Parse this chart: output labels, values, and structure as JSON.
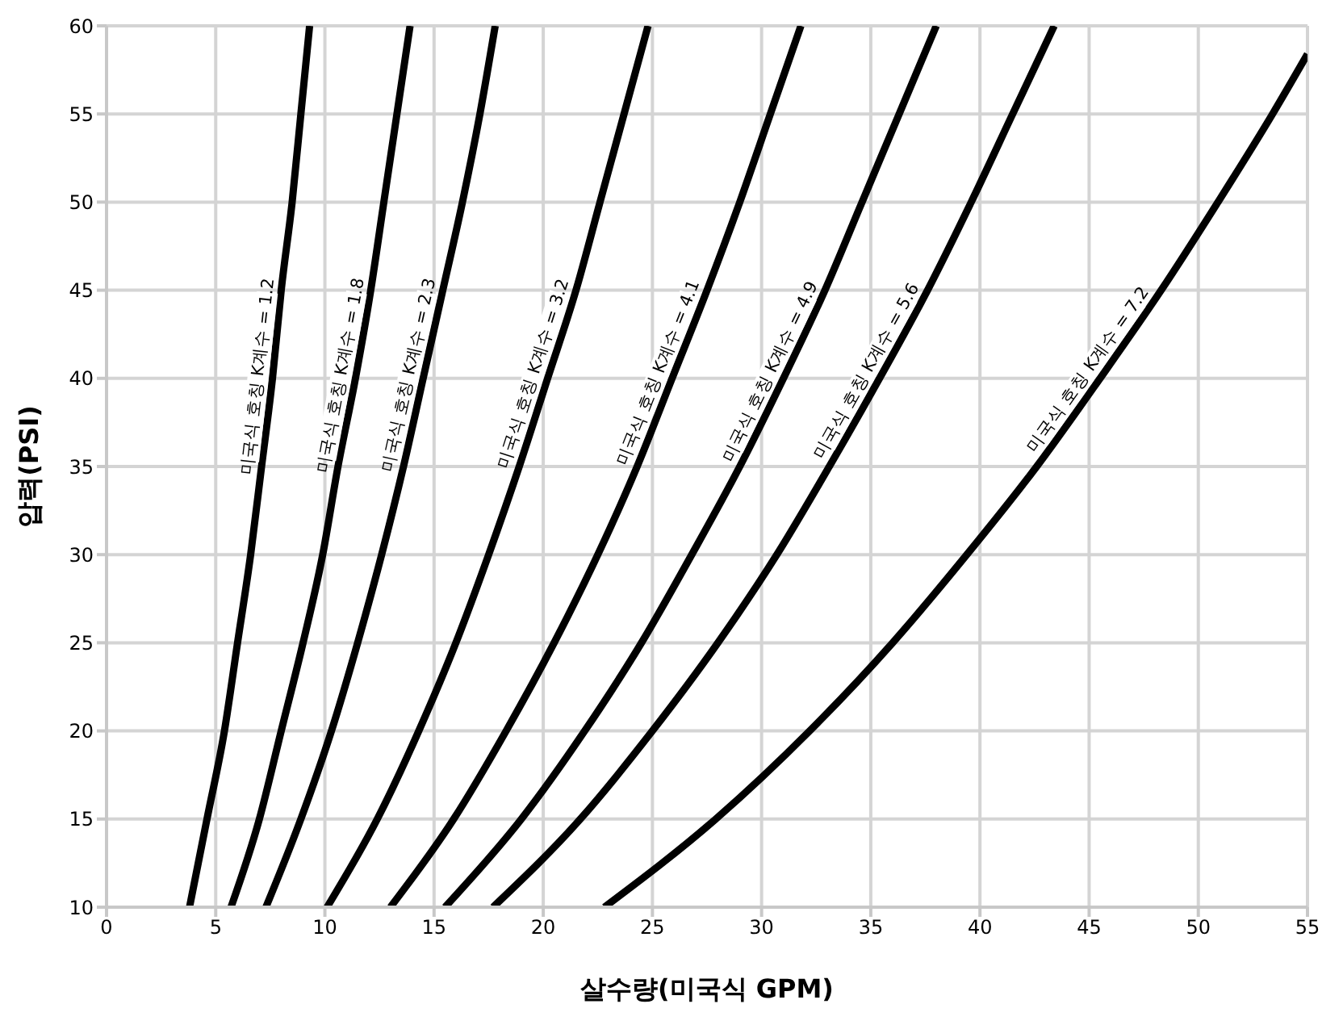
{
  "chart_data": {
    "type": "line",
    "xlabel": "살수량(미국식 GPM)",
    "ylabel": "압력(PSI)",
    "xlim": [
      0,
      55
    ],
    "ylim": [
      10,
      60
    ],
    "xticks": [
      0,
      5,
      10,
      15,
      20,
      25,
      30,
      35,
      40,
      45,
      50,
      55
    ],
    "yticks": [
      10,
      15,
      20,
      25,
      30,
      35,
      40,
      45,
      50,
      55,
      60
    ],
    "grid": true,
    "legend": false,
    "marker": "none",
    "line_style": "solid",
    "series": [
      {
        "name": "미국식 호칭 K계수 = 1.2",
        "color": "#000000",
        "x": [
          3.8,
          4.6,
          5.4,
          6.0,
          6.6,
          7.1,
          7.6,
          8.0,
          8.5,
          8.9,
          9.3
        ],
        "values": [
          10,
          15,
          20,
          25,
          30,
          35,
          40,
          45,
          50,
          55,
          60
        ]
      },
      {
        "name": "미국식 호칭 K계수 = 1.8",
        "color": "#000000",
        "x": [
          5.7,
          7.0,
          8.0,
          9.0,
          9.9,
          10.6,
          11.4,
          12.1,
          12.7,
          13.3,
          13.9
        ],
        "values": [
          10,
          15,
          20,
          25,
          30,
          35,
          40,
          45,
          50,
          55,
          60
        ]
      },
      {
        "name": "미국식 호칭 K계수 = 2.3",
        "color": "#000000",
        "x": [
          7.3,
          8.9,
          10.3,
          11.5,
          12.6,
          13.6,
          14.5,
          15.4,
          16.3,
          17.1,
          17.8
        ],
        "values": [
          10,
          15,
          20,
          25,
          30,
          35,
          40,
          45,
          50,
          55,
          60
        ]
      },
      {
        "name": "미국식 호칭 K계수 = 3.2",
        "color": "#000000",
        "x": [
          10.1,
          12.4,
          14.3,
          16.0,
          17.5,
          18.9,
          20.2,
          21.5,
          22.6,
          23.7,
          24.8
        ],
        "values": [
          10,
          15,
          20,
          25,
          30,
          35,
          40,
          45,
          50,
          55,
          60
        ]
      },
      {
        "name": "미국식 호칭 K계수 = 4.1",
        "color": "#000000",
        "x": [
          13.0,
          15.9,
          18.3,
          20.5,
          22.5,
          24.3,
          25.9,
          27.5,
          29.0,
          30.4,
          31.8
        ],
        "values": [
          10,
          15,
          20,
          25,
          30,
          35,
          40,
          45,
          50,
          55,
          60
        ]
      },
      {
        "name": "미국식 호칭 K계수 = 4.9",
        "color": "#000000",
        "x": [
          15.5,
          19.0,
          21.9,
          24.5,
          26.8,
          29.0,
          31.0,
          32.9,
          34.6,
          36.3,
          38.0
        ],
        "values": [
          10,
          15,
          20,
          25,
          30,
          35,
          40,
          45,
          50,
          55,
          60
        ]
      },
      {
        "name": "미국식 호칭 K계수 = 5.6",
        "color": "#000000",
        "x": [
          17.7,
          21.7,
          25.0,
          28.0,
          30.7,
          33.1,
          35.4,
          37.6,
          39.6,
          41.5,
          43.4
        ],
        "values": [
          10,
          15,
          20,
          25,
          30,
          35,
          40,
          45,
          50,
          55,
          60
        ]
      },
      {
        "name": "미국식 호칭 K계수 = 7.2",
        "color": "#000000",
        "x": [
          22.8,
          27.9,
          32.2,
          36.0,
          39.4,
          42.6,
          45.5,
          48.3,
          50.9,
          53.4,
          55.0
        ],
        "values": [
          10,
          15,
          20,
          25,
          30,
          35,
          40,
          45,
          50,
          55,
          58.4
        ]
      }
    ]
  }
}
